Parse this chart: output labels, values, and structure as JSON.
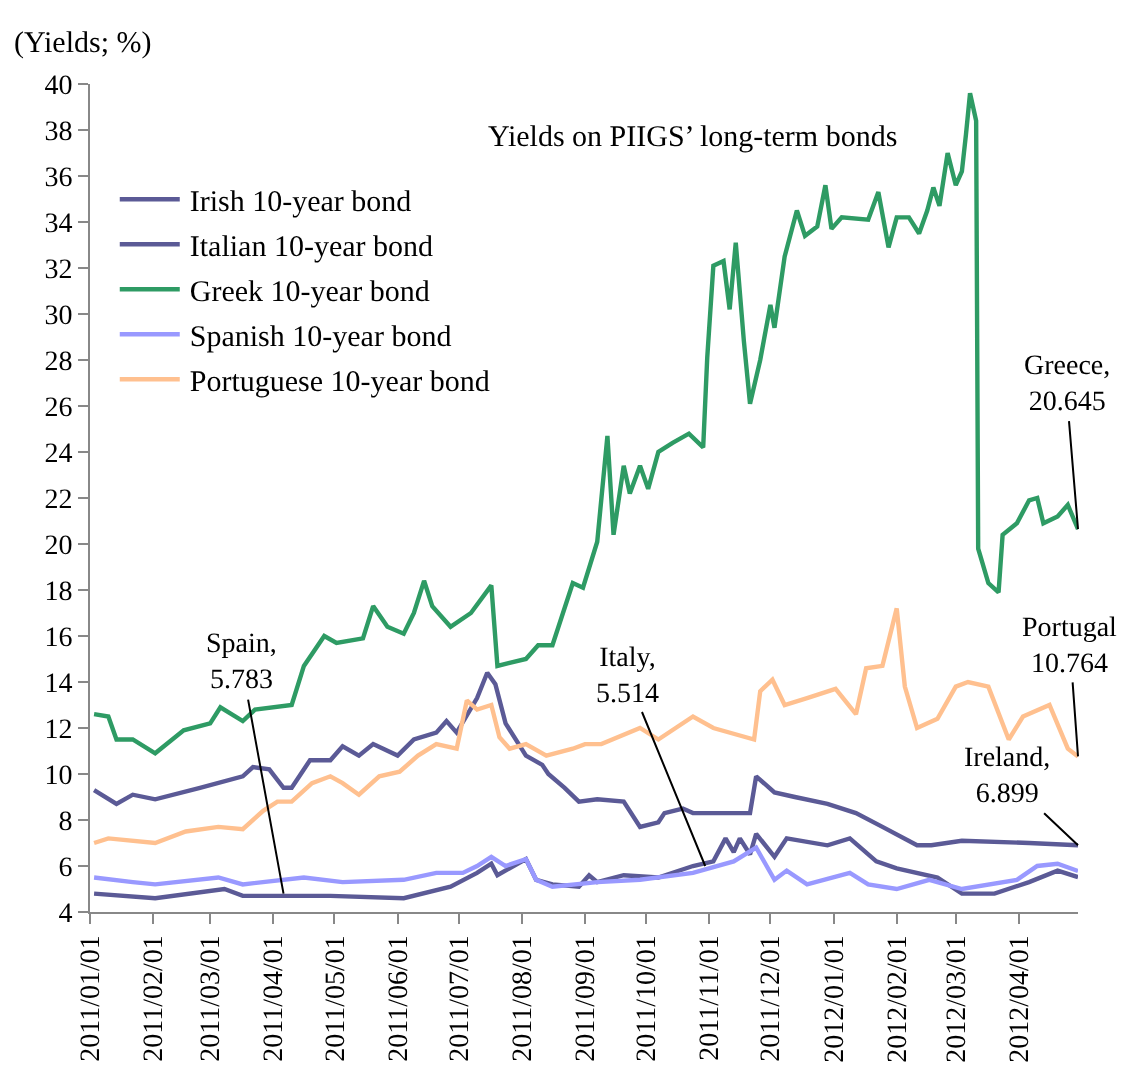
{
  "chart_data": {
    "type": "line",
    "title": "Yields on PIIGS’ long-term bonds",
    "ylabel": "(Yields; %)",
    "xlim": [
      "2011-01-01",
      "2012-04-30"
    ],
    "xticks": [
      {
        "value": "2011-01-01",
        "label": "2011/01/01"
      },
      {
        "value": "2011-02-01",
        "label": "2011/02/01"
      },
      {
        "value": "2011-03-01",
        "label": "2011/03/01"
      },
      {
        "value": "2011-04-01",
        "label": "2011/04/01"
      },
      {
        "value": "2011-05-01",
        "label": "2011/05/01"
      },
      {
        "value": "2011-06-01",
        "label": "2011/06/01"
      },
      {
        "value": "2011-07-01",
        "label": "2011/07/01"
      },
      {
        "value": "2011-08-01",
        "label": "2011/08/01"
      },
      {
        "value": "2011-09-01",
        "label": "2011/09/01"
      },
      {
        "value": "2011-10-01",
        "label": "2011/10/01"
      },
      {
        "value": "2011-11-01",
        "label": "2011/11/01"
      },
      {
        "value": "2011-12-01",
        "label": "2011/12/01"
      },
      {
        "value": "2012-01-01",
        "label": "2012/01/01"
      },
      {
        "value": "2012-02-01",
        "label": "2012/02/01"
      },
      {
        "value": "2012-03-01",
        "label": "2012/03/01"
      },
      {
        "value": "2012-04-01",
        "label": "2012/04/01"
      }
    ],
    "ylim": [
      4,
      40
    ],
    "yticks": [
      4,
      6,
      8,
      10,
      12,
      14,
      16,
      18,
      20,
      22,
      24,
      26,
      28,
      30,
      32,
      34,
      36,
      38,
      40
    ],
    "legend": "top left",
    "marker": "none",
    "line_style": "solid",
    "series": [
      {
        "name": "Irish 10-year bond",
        "color": "#5b5a96",
        "x": [
          "2011-01-03",
          "2011-01-14",
          "2011-01-22",
          "2011-02-02",
          "2011-02-24",
          "2011-03-17",
          "2011-03-22",
          "2011-03-30",
          "2011-04-06",
          "2011-04-10",
          "2011-04-19",
          "2011-04-29",
          "2011-05-05",
          "2011-05-13",
          "2011-05-20",
          "2011-06-01",
          "2011-06-09",
          "2011-06-20",
          "2011-06-25",
          "2011-06-30",
          "2011-07-10",
          "2011-07-15",
          "2011-07-19",
          "2011-07-24",
          "2011-08-03",
          "2011-08-11",
          "2011-08-14",
          "2011-08-22",
          "2011-08-29",
          "2011-09-07",
          "2011-09-20",
          "2011-09-28",
          "2011-10-07",
          "2011-10-10",
          "2011-10-19",
          "2011-10-24",
          "2011-11-21",
          "2011-11-24",
          "2011-12-03",
          "2011-12-13",
          "2011-12-29",
          "2012-01-12",
          "2012-01-25",
          "2012-02-11",
          "2012-02-18",
          "2012-03-04",
          "2012-04-06",
          "2012-04-30"
        ],
        "values": [
          9.3,
          8.7,
          9.1,
          8.9,
          9.4,
          9.9,
          10.3,
          10.2,
          9.4,
          9.4,
          10.6,
          10.6,
          11.2,
          10.8,
          11.3,
          10.8,
          11.5,
          11.8,
          12.3,
          11.8,
          13.3,
          14.4,
          13.9,
          12.2,
          10.8,
          10.4,
          10.0,
          9.4,
          8.8,
          8.9,
          8.8,
          7.7,
          7.9,
          8.3,
          8.5,
          8.3,
          8.3,
          9.9,
          9.2,
          9.0,
          8.7,
          8.3,
          7.7,
          6.9,
          6.9,
          7.1,
          7.0,
          6.899
        ]
      },
      {
        "name": "Italian 10-year bond",
        "color": "#5b5a96",
        "x": [
          "2011-01-03",
          "2011-02-02",
          "2011-03-08",
          "2011-03-17",
          "2011-04-29",
          "2011-06-04",
          "2011-06-27",
          "2011-07-10",
          "2011-07-17",
          "2011-07-20",
          "2011-08-03",
          "2011-08-08",
          "2011-08-16",
          "2011-08-29",
          "2011-09-03",
          "2011-09-07",
          "2011-09-20",
          "2011-10-07",
          "2011-10-24",
          "2011-11-03",
          "2011-11-09",
          "2011-11-13",
          "2011-11-16",
          "2011-11-21",
          "2011-11-24",
          "2011-12-03",
          "2011-12-09",
          "2011-12-29",
          "2012-01-09",
          "2012-01-22",
          "2012-02-01",
          "2012-02-21",
          "2012-03-04",
          "2012-03-20",
          "2012-04-06",
          "2012-04-20",
          "2012-04-30"
        ],
        "values": [
          4.8,
          4.6,
          5.0,
          4.7,
          4.7,
          4.6,
          5.1,
          5.7,
          6.1,
          5.6,
          6.3,
          5.4,
          5.2,
          5.1,
          5.6,
          5.3,
          5.6,
          5.5,
          6.0,
          6.2,
          7.2,
          6.6,
          7.2,
          6.5,
          7.4,
          6.4,
          7.2,
          6.9,
          7.2,
          6.2,
          5.9,
          5.5,
          4.8,
          4.8,
          5.3,
          5.8,
          5.514
        ]
      },
      {
        "name": "Greek 10-year bond",
        "color": "#2e9b64",
        "x": [
          "2011-01-03",
          "2011-01-10",
          "2011-01-14",
          "2011-01-22",
          "2011-02-02",
          "2011-02-16",
          "2011-03-01",
          "2011-03-06",
          "2011-03-17",
          "2011-03-23",
          "2011-04-10",
          "2011-04-16",
          "2011-04-26",
          "2011-05-02",
          "2011-05-15",
          "2011-05-20",
          "2011-05-27",
          "2011-06-04",
          "2011-06-09",
          "2011-06-14",
          "2011-06-18",
          "2011-06-27",
          "2011-07-07",
          "2011-07-17",
          "2011-07-20",
          "2011-08-03",
          "2011-08-09",
          "2011-08-16",
          "2011-08-26",
          "2011-08-31",
          "2011-09-07",
          "2011-09-12",
          "2011-09-15",
          "2011-09-20",
          "2011-09-23",
          "2011-09-28",
          "2011-10-02",
          "2011-10-07",
          "2011-10-14",
          "2011-10-22",
          "2011-10-29",
          "2011-10-31",
          "2011-11-03",
          "2011-11-08",
          "2011-11-11",
          "2011-11-14",
          "2011-11-18",
          "2011-11-21",
          "2011-11-26",
          "2011-12-01",
          "2011-12-03",
          "2011-12-08",
          "2011-12-14",
          "2011-12-18",
          "2011-12-24",
          "2011-12-28",
          "2011-12-31",
          "2012-01-05",
          "2012-01-18",
          "2012-01-23",
          "2012-01-28",
          "2012-02-01",
          "2012-02-07",
          "2012-02-12",
          "2012-02-16",
          "2012-02-19",
          "2012-02-22",
          "2012-02-26",
          "2012-03-01",
          "2012-03-04",
          "2012-03-06",
          "2012-03-08",
          "2012-03-11",
          "2012-03-12",
          "2012-03-14",
          "2012-03-17",
          "2012-03-22",
          "2012-03-24",
          "2012-03-31",
          "2012-04-06",
          "2012-04-10",
          "2012-04-13",
          "2012-04-20",
          "2012-04-25",
          "2012-04-30"
        ],
        "values": [
          12.6,
          12.5,
          11.5,
          11.5,
          10.9,
          11.9,
          12.2,
          12.9,
          12.3,
          12.8,
          13.0,
          14.7,
          16.0,
          15.7,
          15.9,
          17.3,
          16.4,
          16.1,
          17.0,
          18.4,
          17.3,
          16.4,
          17.0,
          18.2,
          14.7,
          15.0,
          15.6,
          15.6,
          18.3,
          18.1,
          20.1,
          24.7,
          20.4,
          23.4,
          22.2,
          23.4,
          22.4,
          24.0,
          24.4,
          24.8,
          24.2,
          28.1,
          32.1,
          32.3,
          30.2,
          33.1,
          28.8,
          26.1,
          28.0,
          30.4,
          29.4,
          32.5,
          34.5,
          33.4,
          33.8,
          35.6,
          33.7,
          34.2,
          34.1,
          35.3,
          32.9,
          34.2,
          34.2,
          33.5,
          34.5,
          35.5,
          34.7,
          37.0,
          35.6,
          36.2,
          37.8,
          39.6,
          38.4,
          19.8,
          19.2,
          18.3,
          17.9,
          20.4,
          20.9,
          21.9,
          22.0,
          20.9,
          21.2,
          21.7,
          20.645
        ]
      },
      {
        "name": "Spanish 10-year bond",
        "color": "#9999ff",
        "x": [
          "2011-01-03",
          "2011-01-22",
          "2011-02-02",
          "2011-03-05",
          "2011-03-17",
          "2011-04-16",
          "2011-05-05",
          "2011-06-04",
          "2011-06-20",
          "2011-07-03",
          "2011-07-10",
          "2011-07-17",
          "2011-07-24",
          "2011-08-03",
          "2011-08-08",
          "2011-08-16",
          "2011-09-07",
          "2011-09-28",
          "2011-10-24",
          "2011-11-13",
          "2011-11-24",
          "2011-12-03",
          "2011-12-09",
          "2011-12-19",
          "2012-01-09",
          "2012-01-18",
          "2012-02-01",
          "2012-02-17",
          "2012-03-04",
          "2012-03-31",
          "2012-04-10",
          "2012-04-20",
          "2012-04-30"
        ],
        "values": [
          5.5,
          5.3,
          5.2,
          5.5,
          5.2,
          5.5,
          5.3,
          5.4,
          5.7,
          5.7,
          6.0,
          6.4,
          6.0,
          6.3,
          5.4,
          5.1,
          5.3,
          5.4,
          5.7,
          6.2,
          6.8,
          5.4,
          5.8,
          5.2,
          5.7,
          5.2,
          5.0,
          5.4,
          5.0,
          5.4,
          6.0,
          6.1,
          5.783
        ]
      },
      {
        "name": "Portuguese 10-year bond",
        "color": "#ffc08f",
        "x": [
          "2011-01-03",
          "2011-01-10",
          "2011-02-02",
          "2011-02-17",
          "2011-03-05",
          "2011-03-17",
          "2011-03-27",
          "2011-04-03",
          "2011-04-10",
          "2011-04-20",
          "2011-04-29",
          "2011-05-05",
          "2011-05-13",
          "2011-05-23",
          "2011-06-02",
          "2011-06-11",
          "2011-06-20",
          "2011-06-30",
          "2011-07-05",
          "2011-07-10",
          "2011-07-17",
          "2011-07-21",
          "2011-07-26",
          "2011-08-03",
          "2011-08-13",
          "2011-08-26",
          "2011-09-01",
          "2011-09-09",
          "2011-09-28",
          "2011-10-07",
          "2011-10-24",
          "2011-11-03",
          "2011-11-23",
          "2011-11-26",
          "2011-12-02",
          "2011-12-08",
          "2011-12-19",
          "2012-01-02",
          "2012-01-12",
          "2012-01-17",
          "2012-01-25",
          "2012-02-01",
          "2012-02-05",
          "2012-02-11",
          "2012-02-21",
          "2012-03-01",
          "2012-03-07",
          "2012-03-17",
          "2012-03-27",
          "2012-04-03",
          "2012-04-16",
          "2012-04-25",
          "2012-04-30"
        ],
        "values": [
          7.0,
          7.2,
          7.0,
          7.5,
          7.7,
          7.6,
          8.4,
          8.8,
          8.8,
          9.6,
          9.9,
          9.6,
          9.1,
          9.9,
          10.1,
          10.8,
          11.3,
          11.1,
          13.2,
          12.8,
          13.0,
          11.6,
          11.1,
          11.3,
          10.8,
          11.1,
          11.3,
          11.3,
          12.0,
          11.5,
          12.5,
          12.0,
          11.5,
          13.6,
          14.1,
          13.0,
          13.3,
          13.7,
          12.6,
          14.6,
          14.7,
          17.2,
          13.8,
          12.0,
          12.4,
          13.8,
          14.0,
          13.8,
          11.5,
          12.5,
          13.0,
          11.1,
          10.764
        ]
      }
    ],
    "annotations": [
      {
        "text": "Spain,\n5.783",
        "x": "2011-04-06",
        "y": 4.8
      },
      {
        "text": "Italy,\n5.514",
        "x": "2011-10-30",
        "y": 6.0
      },
      {
        "text": "Greece,\n20.645",
        "x": "2012-04-30",
        "y": 20.645
      },
      {
        "text": "Portugal\n10.764",
        "x": "2012-04-30",
        "y": 10.764
      },
      {
        "text": "Ireland,\n6.899",
        "x": "2012-04-30",
        "y": 6.899
      }
    ]
  }
}
